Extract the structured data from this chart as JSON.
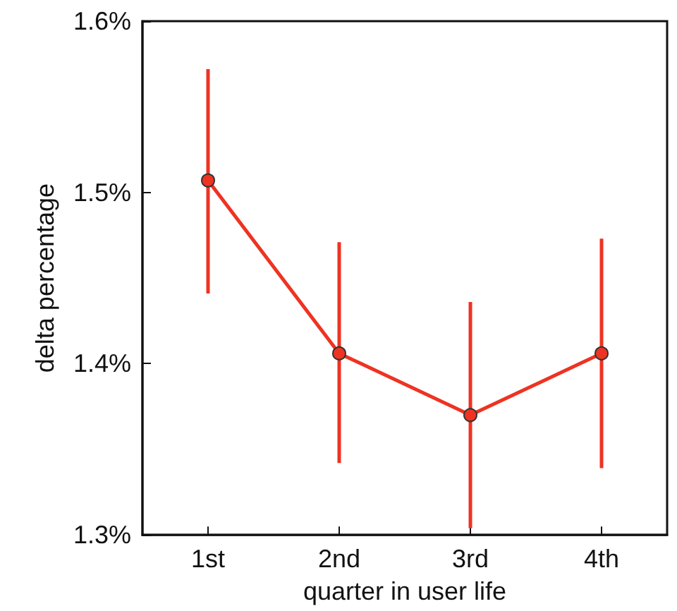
{
  "chart_data": {
    "type": "line",
    "xlabel": "quarter in user life",
    "ylabel": "delta percentage",
    "categories": [
      "1st",
      "2nd",
      "3rd",
      "4th"
    ],
    "series": [
      {
        "color": "#ee3322",
        "values": [
          1.507,
          1.406,
          1.37,
          1.406
        ],
        "errors": [
          [
            1.441,
            1.572
          ],
          [
            1.342,
            1.471
          ],
          [
            1.304,
            1.436
          ],
          [
            1.339,
            1.473
          ]
        ]
      }
    ],
    "ylim": [
      1.3,
      1.6
    ],
    "yticks": [
      {
        "value": 1.3,
        "label": "1.3%"
      },
      {
        "value": 1.4,
        "label": "1.4%"
      },
      {
        "value": 1.5,
        "label": "1.5%"
      },
      {
        "value": 1.6,
        "label": "1.6%"
      }
    ],
    "marker": "circle",
    "grid": false
  }
}
